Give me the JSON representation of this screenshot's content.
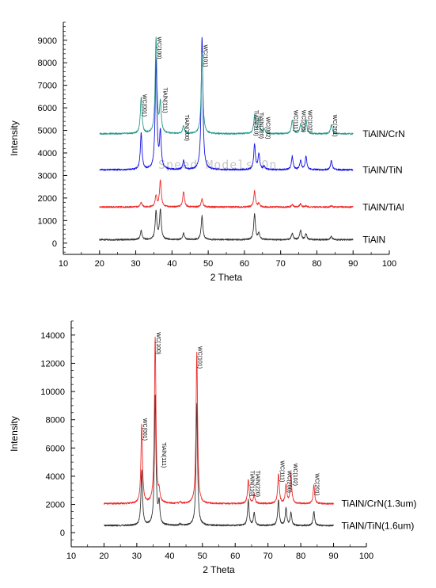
{
  "watermark": "Speed Models On",
  "chart_data": [
    {
      "type": "line",
      "title": "",
      "xlabel": "2 Theta",
      "ylabel": "Intensity",
      "xlim": [
        10,
        100
      ],
      "ylim": [
        -500,
        9800
      ],
      "xticks": [
        "10",
        "20",
        "30",
        "40",
        "50",
        "60",
        "70",
        "80",
        "90",
        "100"
      ],
      "yticks": [
        "0",
        "1000",
        "2000",
        "3000",
        "4000",
        "5000",
        "6000",
        "7000",
        "8000",
        "9000"
      ],
      "x_range": [
        20,
        90
      ],
      "peaks": [
        31.5,
        35.6,
        36.8,
        43.2,
        48.3,
        62.8,
        64.0,
        65.5,
        73.2,
        75.5,
        77.0,
        84.0
      ],
      "series": [
        {
          "name": "TiAlN",
          "color": "#333333",
          "baseline": 150,
          "heights": [
            400,
            1250,
            1300,
            280,
            1050,
            1150,
            300,
            0,
            280,
            400,
            250,
            150
          ]
        },
        {
          "name": "TiAlN/TiAl",
          "color": "#ee2b2b",
          "baseline": 1600,
          "heights": [
            200,
            500,
            1200,
            700,
            350,
            700,
            150,
            0,
            100,
            150,
            50,
            50
          ]
        },
        {
          "name": "TiAlN/TiN",
          "color": "#1414e6",
          "baseline": 3250,
          "heights": [
            1600,
            4800,
            1600,
            400,
            5900,
            1100,
            700,
            150,
            600,
            400,
            600,
            400
          ]
        },
        {
          "name": "TiAlN/CrN",
          "color": "#2a9a8a",
          "baseline": 4850,
          "heights": [
            1600,
            4200,
            1300,
            350,
            3600,
            800,
            700,
            200,
            600,
            400,
            600,
            400
          ]
        }
      ],
      "annotations": [
        {
          "text": "WC(001)",
          "x": 31.5,
          "y": 6600
        },
        {
          "text": "WC(100)",
          "x": 35.6,
          "y": 9150
        },
        {
          "text": "TiAlN(111)",
          "x": 37.2,
          "y": 6900
        },
        {
          "text": "TiAlN(200)",
          "x": 43.2,
          "y": 5700
        },
        {
          "text": "WC(101)",
          "x": 48.3,
          "y": 8800
        },
        {
          "text": "TiAlN(110)",
          "x": 62.3,
          "y": 5900
        },
        {
          "text": "TiAlN(220)",
          "x": 63.7,
          "y": 5800
        },
        {
          "text": "WC(002)",
          "x": 65.6,
          "y": 5600
        },
        {
          "text": "WC(111)",
          "x": 73.2,
          "y": 5900
        },
        {
          "text": "WC(200)",
          "x": 75.4,
          "y": 5900
        },
        {
          "text": "WC(102)",
          "x": 77.2,
          "y": 5900
        },
        {
          "text": "WC(201)",
          "x": 84.0,
          "y": 5700
        }
      ]
    },
    {
      "type": "line",
      "title": "",
      "xlabel": "2 Theta",
      "ylabel": "Intensity",
      "xlim": [
        10,
        100
      ],
      "ylim": [
        -1000,
        15000
      ],
      "xticks": [
        "10",
        "20",
        "30",
        "40",
        "50",
        "60",
        "70",
        "80",
        "90",
        "100"
      ],
      "yticks": [
        "0",
        "2000",
        "4000",
        "6000",
        "8000",
        "10000",
        "12000",
        "14000"
      ],
      "x_range": [
        20,
        90
      ],
      "peaks": [
        31.5,
        35.6,
        36.8,
        43.2,
        48.3,
        64.0,
        65.8,
        73.2,
        75.5,
        77.0,
        84.0
      ],
      "series": [
        {
          "name": "TiAlN/TiN(1.6um)",
          "color": "#333333",
          "baseline": 500,
          "heights": [
            3900,
            9200,
            1500,
            100,
            8600,
            1800,
            900,
            1800,
            1200,
            900,
            1000
          ]
        },
        {
          "name": "TiAlN/CrN(1.3um)",
          "color": "#ee2b2b",
          "baseline": 2050,
          "heights": [
            5600,
            11700,
            700,
            100,
            10700,
            1700,
            600,
            2100,
            1300,
            2100,
            1300
          ]
        }
      ],
      "annotations": [
        {
          "text": "WC(001)",
          "x": 31.5,
          "y": 8100
        },
        {
          "text": "WC(100)",
          "x": 35.6,
          "y": 14200
        },
        {
          "text": "TiAlN(111)",
          "x": 37.3,
          "y": 6400
        },
        {
          "text": "WC(101)",
          "x": 48.3,
          "y": 13200
        },
        {
          "text": "TiAlN(110)",
          "x": 64.2,
          "y": 4400
        },
        {
          "text": "TiAlN(220)",
          "x": 65.9,
          "y": 4400
        },
        {
          "text": "WC(111)",
          "x": 73.3,
          "y": 5100
        },
        {
          "text": "WC(200)",
          "x": 75.5,
          "y": 4400
        },
        {
          "text": "WC(102)",
          "x": 77.3,
          "y": 4900
        },
        {
          "text": "WC(201)",
          "x": 84.0,
          "y": 4200
        }
      ]
    }
  ]
}
